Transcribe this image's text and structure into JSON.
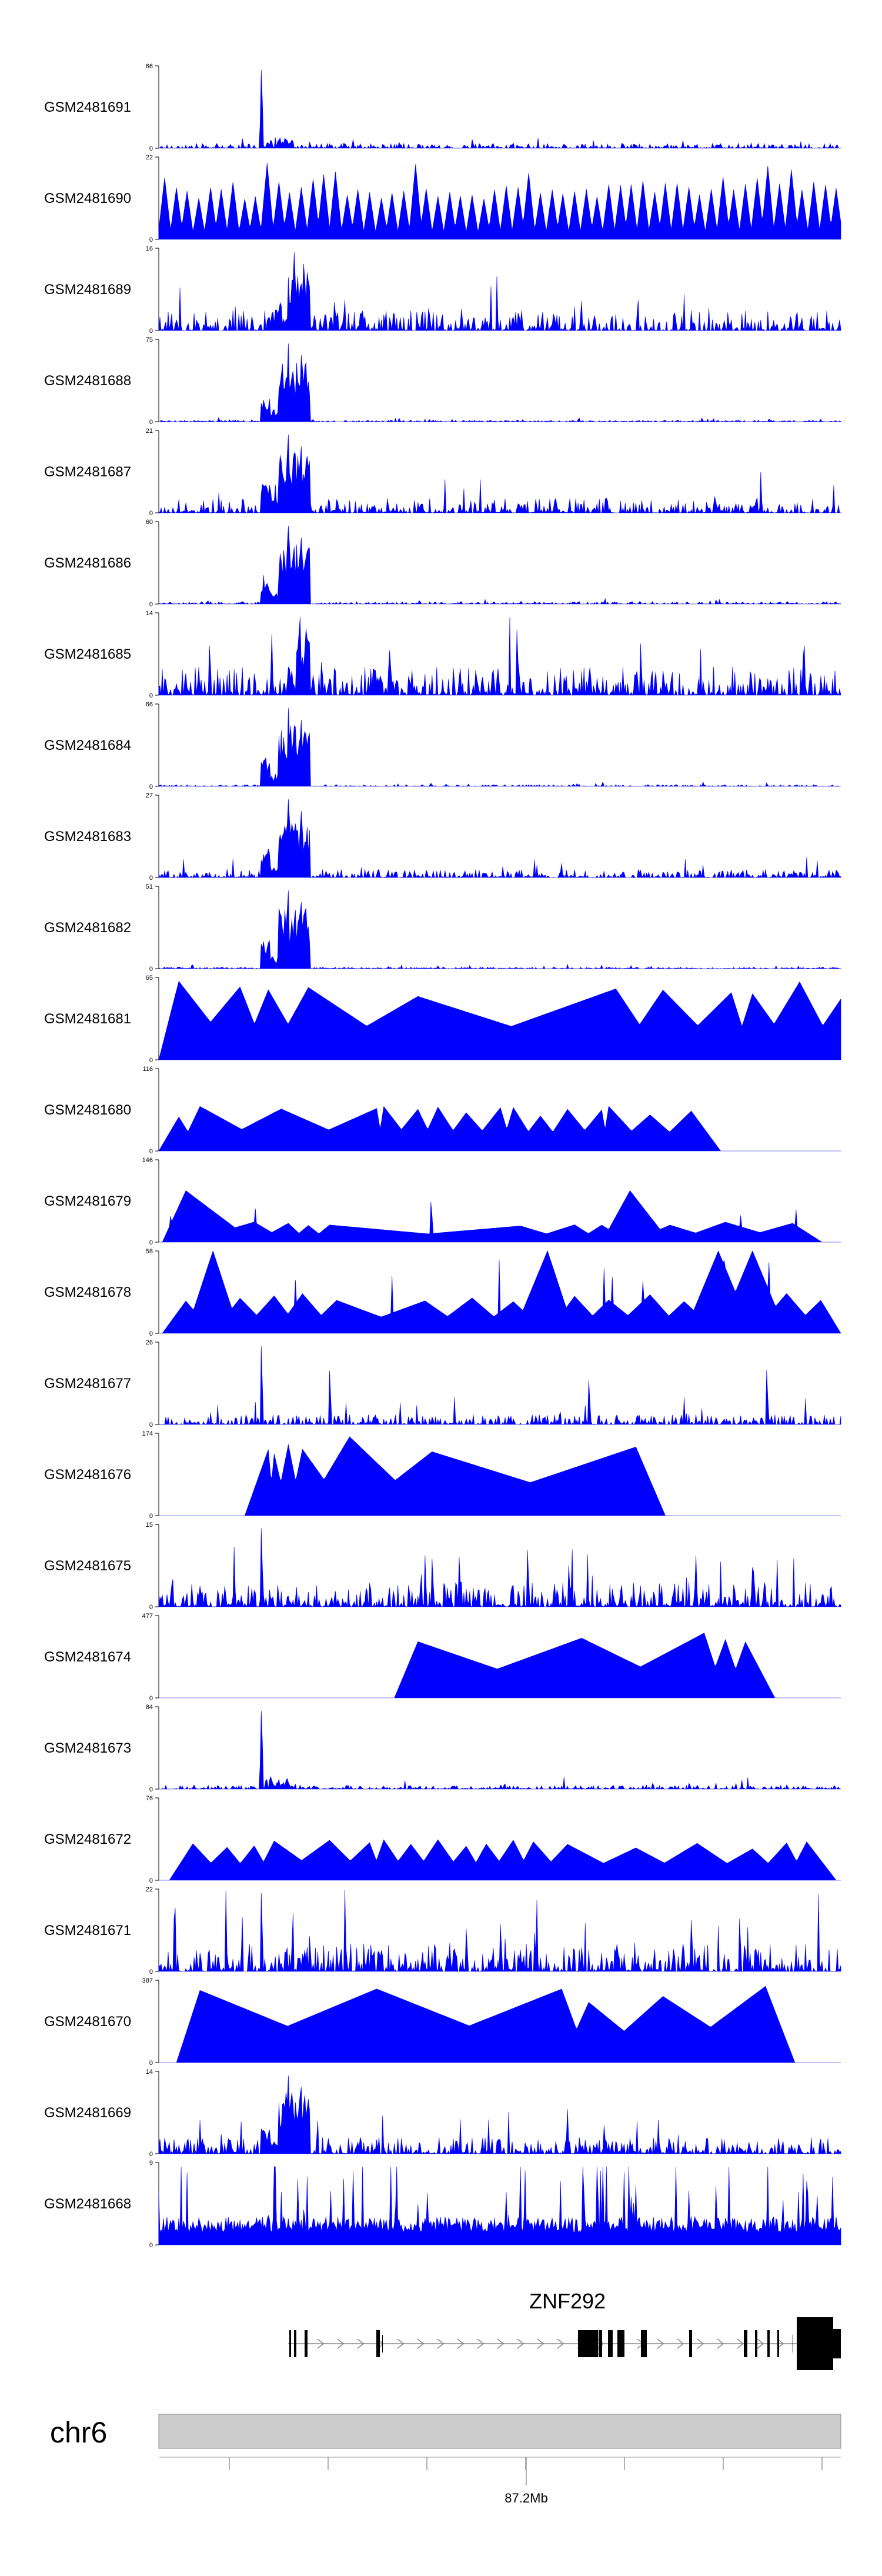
{
  "chart_data": {
    "type": "area",
    "title": "",
    "chromosome": "chr6",
    "position_label": "87.2Mb",
    "gene": {
      "name": "ZNF292",
      "strand": "+"
    },
    "colors": {
      "signal": "#0000ff",
      "gene": "#000000",
      "ideogram": "#cccccc",
      "axis": "#000000"
    },
    "tracks": [
      {
        "name": "GSM2481691",
        "ymax": 66,
        "pattern": "peak",
        "peak_pos": 0.15,
        "peak_height": 0.95,
        "noise": 0.06
      },
      {
        "name": "GSM2481690",
        "ymax": 22,
        "pattern": "triangles_dense",
        "count": 60,
        "peak_height": 0.7
      },
      {
        "name": "GSM2481689",
        "ymax": 16,
        "pattern": "cluster",
        "cluster": [
          0.17,
          0.22
        ],
        "peak_height": 0.95,
        "noise": 0.25
      },
      {
        "name": "GSM2481688",
        "ymax": 75,
        "pattern": "cluster",
        "cluster": [
          0.15,
          0.22
        ],
        "peak_height": 0.95,
        "noise": 0.02
      },
      {
        "name": "GSM2481687",
        "ymax": 21,
        "pattern": "cluster",
        "cluster": [
          0.15,
          0.22
        ],
        "peak_height": 0.95,
        "noise": 0.18
      },
      {
        "name": "GSM2481686",
        "ymax": 60,
        "pattern": "cluster",
        "cluster": [
          0.15,
          0.22
        ],
        "peak_height": 0.95,
        "noise": 0.03
      },
      {
        "name": "GSM2481685",
        "ymax": 14,
        "pattern": "cluster",
        "cluster": [
          0.19,
          0.22
        ],
        "peak_height": 0.95,
        "noise": 0.35
      },
      {
        "name": "GSM2481684",
        "ymax": 66,
        "pattern": "cluster",
        "cluster": [
          0.15,
          0.22
        ],
        "peak_height": 0.95,
        "noise": 0.02
      },
      {
        "name": "GSM2481683",
        "ymax": 27,
        "pattern": "cluster",
        "cluster": [
          0.15,
          0.22
        ],
        "peak_height": 0.95,
        "noise": 0.1
      },
      {
        "name": "GSM2481682",
        "ymax": 51,
        "pattern": "cluster",
        "cluster": [
          0.15,
          0.22
        ],
        "peak_height": 0.95,
        "noise": 0.02
      },
      {
        "name": "GSM2481681",
        "ymax": 65,
        "pattern": "triangles",
        "peaks": [
          0.03,
          0.12,
          0.16,
          0.22,
          0.38,
          0.67,
          0.74,
          0.84,
          0.87,
          0.94,
          1.0
        ],
        "peak_height": 0.97
      },
      {
        "name": "GSM2481680",
        "ymax": 116,
        "pattern": "triangles",
        "peaks": [
          0.03,
          0.06,
          0.18,
          0.32,
          0.33,
          0.38,
          0.41,
          0.45,
          0.5,
          0.52,
          0.56,
          0.6,
          0.65,
          0.66,
          0.72,
          0.78
        ],
        "peak_height": 0.55
      },
      {
        "name": "GSM2481679",
        "ymax": 146,
        "pattern": "triangles_spiky",
        "peaks": [
          0.04,
          0.14,
          0.19,
          0.22,
          0.25,
          0.53,
          0.61,
          0.65,
          0.69,
          0.75,
          0.83,
          0.93
        ],
        "peak_height": 0.25
      },
      {
        "name": "GSM2481678",
        "ymax": 58,
        "pattern": "triangles_spiky",
        "peaks": [
          0.04,
          0.08,
          0.12,
          0.17,
          0.21,
          0.26,
          0.39,
          0.46,
          0.52,
          0.57,
          0.61,
          0.66,
          0.72,
          0.77,
          0.82,
          0.87,
          0.92,
          0.97
        ],
        "peak_height": 0.5
      },
      {
        "name": "GSM2481677",
        "ymax": 26,
        "pattern": "peak_multi",
        "peaks": [
          0.15,
          0.25,
          0.63,
          0.89
        ],
        "peak_height": 0.95,
        "noise": 0.12
      },
      {
        "name": "GSM2481676",
        "ymax": 174,
        "pattern": "triangles",
        "peaks": [
          0.16,
          0.17,
          0.19,
          0.21,
          0.28,
          0.4,
          0.7
        ],
        "peak_height": 0.98
      },
      {
        "name": "GSM2481675",
        "ymax": 15,
        "pattern": "peak_multi",
        "peaks": [
          0.15,
          0.4,
          0.44,
          0.54,
          0.6,
          0.87
        ],
        "peak_height": 0.95,
        "noise": 0.3
      },
      {
        "name": "GSM2481674",
        "ymax": 477,
        "pattern": "triangles_sparse",
        "peaks": [
          0.38,
          0.62,
          0.8,
          0.83,
          0.86
        ],
        "peak_height": 0.8
      },
      {
        "name": "GSM2481673",
        "ymax": 84,
        "pattern": "peak",
        "peak_pos": 0.15,
        "peak_height": 0.95,
        "noise": 0.05
      },
      {
        "name": "GSM2481672",
        "ymax": 76,
        "pattern": "triangles",
        "peaks": [
          0.05,
          0.1,
          0.14,
          0.17,
          0.25,
          0.31,
          0.33,
          0.37,
          0.41,
          0.45,
          0.48,
          0.52,
          0.55,
          0.6,
          0.7,
          0.79,
          0.87,
          0.92,
          0.95
        ],
        "peak_height": 0.5
      },
      {
        "name": "GSM2481671",
        "ymax": 22,
        "pattern": "peak_multi",
        "peaks": [
          0.15,
          0.22,
          0.45,
          0.5,
          0.55,
          0.78,
          0.85
        ],
        "peak_height": 0.95,
        "noise": 0.35
      },
      {
        "name": "GSM2481670",
        "ymax": 387,
        "pattern": "triangles_sparse",
        "peaks": [
          0.06,
          0.32,
          0.59,
          0.63,
          0.74,
          0.89
        ],
        "peak_height": 0.95
      },
      {
        "name": "GSM2481669",
        "ymax": 14,
        "pattern": "cluster",
        "cluster": [
          0.15,
          0.22
        ],
        "peak_height": 0.95,
        "noise": 0.2
      },
      {
        "name": "GSM2481668",
        "ymax": 9,
        "pattern": "dense_noise",
        "peak_height": 0.95,
        "noise": 0.55
      }
    ]
  }
}
